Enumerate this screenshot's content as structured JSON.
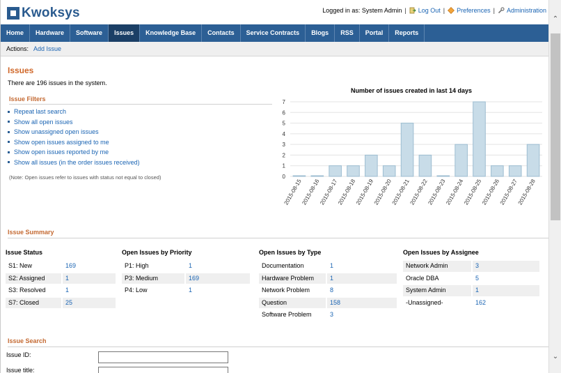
{
  "app": {
    "name": "Kwoksys"
  },
  "userbar": {
    "logged_in_text": "Logged in as: System Admin",
    "logout": "Log Out",
    "preferences": "Preferences",
    "administration": "Administration"
  },
  "nav": {
    "items": [
      {
        "label": "Home"
      },
      {
        "label": "Hardware"
      },
      {
        "label": "Software"
      },
      {
        "label": "Issues"
      },
      {
        "label": "Knowledge Base"
      },
      {
        "label": "Contacts"
      },
      {
        "label": "Service Contracts"
      },
      {
        "label": "Blogs"
      },
      {
        "label": "RSS"
      },
      {
        "label": "Portal"
      },
      {
        "label": "Reports"
      }
    ],
    "active_index": 3
  },
  "actions": {
    "label": "Actions:",
    "add_issue": "Add Issue"
  },
  "page": {
    "title": "Issues",
    "count_text": "There are 196 issues in the system."
  },
  "filters": {
    "title": "Issue Filters",
    "items": [
      "Repeat last search",
      "Show all open issues",
      "Show unassigned open issues",
      "Show open issues assigned to me",
      "Show open issues reported by me",
      "Show all issues (in the order issues received)"
    ],
    "note": "(Note: Open issues refer to issues with status not equal to closed)"
  },
  "chart_data": {
    "type": "bar",
    "title": "Number of issues created in last 14 days",
    "categories": [
      "2015-08-15",
      "2015-08-16",
      "2015-08-17",
      "2015-08-18",
      "2015-08-19",
      "2015-08-20",
      "2015-08-21",
      "2015-08-22",
      "2015-08-23",
      "2015-08-24",
      "2015-08-25",
      "2015-08-26",
      "2015-08-27",
      "2015-08-28"
    ],
    "values": [
      0,
      0,
      1,
      1,
      2,
      1,
      5,
      2,
      0,
      3,
      7,
      1,
      1,
      3
    ],
    "ylim": [
      0,
      7
    ],
    "yticks": [
      0,
      1,
      2,
      3,
      4,
      5,
      6,
      7
    ],
    "grid": true,
    "bar_color": "#c8dce8",
    "bar_edge_color": "#9dbdd1"
  },
  "summary": {
    "title": "Issue Summary",
    "status": {
      "heading": "Issue Status",
      "rows": [
        {
          "label": "S1: New",
          "value": "169"
        },
        {
          "label": "S2: Assigned",
          "value": "1"
        },
        {
          "label": "S3: Resolved",
          "value": "1"
        },
        {
          "label": "S7: Closed",
          "value": "25"
        }
      ]
    },
    "priority": {
      "heading": "Open Issues by Priority",
      "rows": [
        {
          "label": "P1: High",
          "value": "1"
        },
        {
          "label": "P3: Medium",
          "value": "169"
        },
        {
          "label": "P4: Low",
          "value": "1"
        }
      ]
    },
    "type": {
      "heading": "Open Issues by Type",
      "rows": [
        {
          "label": "Documentation",
          "value": "1"
        },
        {
          "label": "Hardware Problem",
          "value": "1"
        },
        {
          "label": "Network Problem",
          "value": "8"
        },
        {
          "label": "Question",
          "value": "158"
        },
        {
          "label": "Software Problem",
          "value": "3"
        }
      ]
    },
    "assignee": {
      "heading": "Open Issues by Assignee",
      "rows": [
        {
          "label": "Network Admin",
          "value": "3"
        },
        {
          "label": "Oracle DBA",
          "value": "5"
        },
        {
          "label": "System Admin",
          "value": "1"
        },
        {
          "label": "-Unassigned-",
          "value": "162"
        }
      ]
    }
  },
  "search": {
    "title": "Issue Search",
    "issue_id_label": "Issue ID:",
    "issue_id_value": "",
    "issue_title_label": "Issue title:",
    "issue_title_value": ""
  },
  "colors": {
    "nav_bg": "#2c5f95",
    "nav_active": "#1b3f66",
    "accent": "#d0682a",
    "link": "#1a64b3"
  }
}
